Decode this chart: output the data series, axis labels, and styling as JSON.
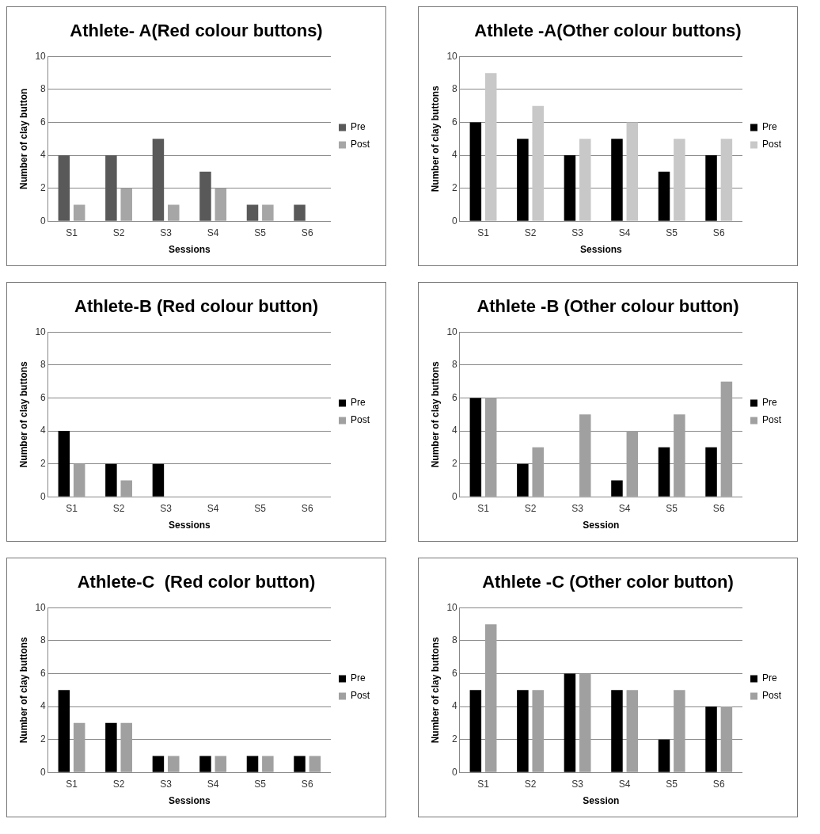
{
  "chart_data": [
    {
      "type": "bar",
      "title": "Athlete- A(Red colour buttons)",
      "xlabel": "Sessions",
      "ylabel": "Number of clay button",
      "categories": [
        "S1",
        "S2",
        "S3",
        "S4",
        "S5",
        "S6"
      ],
      "series": [
        {
          "name": "Pre",
          "color": "#595959",
          "values": [
            4,
            4,
            5,
            3,
            1,
            1
          ]
        },
        {
          "name": "Post",
          "color": "#a6a6a6",
          "values": [
            1,
            2,
            1,
            2,
            1,
            0
          ]
        }
      ],
      "ylim": [
        0,
        10
      ],
      "yticks": [
        0,
        2,
        4,
        6,
        8,
        10
      ],
      "grid": "y",
      "legend": "right"
    },
    {
      "type": "bar",
      "title": "Athlete -A(Other colour buttons)",
      "xlabel": "Sessions",
      "ylabel": "Number of clay buttons",
      "categories": [
        "S1",
        "S2",
        "S3",
        "S4",
        "S5",
        "S6"
      ],
      "series": [
        {
          "name": "Pre",
          "color": "#000000",
          "values": [
            6,
            5,
            4,
            5,
            3,
            4
          ]
        },
        {
          "name": "Post",
          "color": "#c8c8c8",
          "values": [
            9,
            7,
            5,
            6,
            5,
            5
          ]
        }
      ],
      "ylim": [
        0,
        10
      ],
      "yticks": [
        0,
        2,
        4,
        6,
        8,
        10
      ],
      "grid": "y",
      "legend": "right"
    },
    {
      "type": "bar",
      "title": "Athlete-B (Red colour button)",
      "xlabel": "Sessions",
      "ylabel": "Number of clay buttons",
      "categories": [
        "S1",
        "S2",
        "S3",
        "S4",
        "S5",
        "S6"
      ],
      "series": [
        {
          "name": "Pre",
          "color": "#000000",
          "values": [
            4,
            2,
            2,
            0,
            0,
            0
          ]
        },
        {
          "name": "Post",
          "color": "#a0a0a0",
          "values": [
            2,
            1,
            0,
            0,
            0,
            0
          ]
        }
      ],
      "ylim": [
        0,
        10
      ],
      "yticks": [
        0,
        2,
        4,
        6,
        8,
        10
      ],
      "grid": "y",
      "legend": "right"
    },
    {
      "type": "bar",
      "title": "Athlete -B (Other colour button)",
      "xlabel": "Session",
      "ylabel": "Number of clay buttons",
      "categories": [
        "S1",
        "S2",
        "S3",
        "S4",
        "S5",
        "S6"
      ],
      "series": [
        {
          "name": "Pre",
          "color": "#000000",
          "values": [
            6,
            2,
            0,
            1,
            3,
            3
          ]
        },
        {
          "name": "Post",
          "color": "#a0a0a0",
          "values": [
            6,
            3,
            5,
            4,
            5,
            7
          ]
        }
      ],
      "ylim": [
        0,
        10
      ],
      "yticks": [
        0,
        2,
        4,
        6,
        8,
        10
      ],
      "grid": "y",
      "legend": "right"
    },
    {
      "type": "bar",
      "title": "Athlete-C  (Red color button)",
      "xlabel": "Sessions",
      "ylabel": "Number of clay buttons",
      "categories": [
        "S1",
        "S2",
        "S3",
        "S4",
        "S5",
        "S6"
      ],
      "series": [
        {
          "name": "Pre",
          "color": "#000000",
          "values": [
            5,
            3,
            1,
            1,
            1,
            1
          ]
        },
        {
          "name": "Post",
          "color": "#a0a0a0",
          "values": [
            3,
            3,
            1,
            1,
            1,
            1
          ]
        }
      ],
      "ylim": [
        0,
        10
      ],
      "yticks": [
        0,
        2,
        4,
        6,
        8,
        10
      ],
      "grid": "y",
      "legend": "right"
    },
    {
      "type": "bar",
      "title": "Athlete -C (Other color button)",
      "xlabel": "Session",
      "ylabel": "Number of clay buttons",
      "categories": [
        "S1",
        "S2",
        "S3",
        "S4",
        "S5",
        "S6"
      ],
      "series": [
        {
          "name": "Pre",
          "color": "#000000",
          "values": [
            5,
            5,
            6,
            5,
            2,
            4
          ]
        },
        {
          "name": "Post",
          "color": "#a0a0a0",
          "values": [
            9,
            5,
            6,
            5,
            5,
            4
          ]
        }
      ],
      "ylim": [
        0,
        10
      ],
      "yticks": [
        0,
        2,
        4,
        6,
        8,
        10
      ],
      "grid": "y",
      "legend": "right"
    }
  ]
}
